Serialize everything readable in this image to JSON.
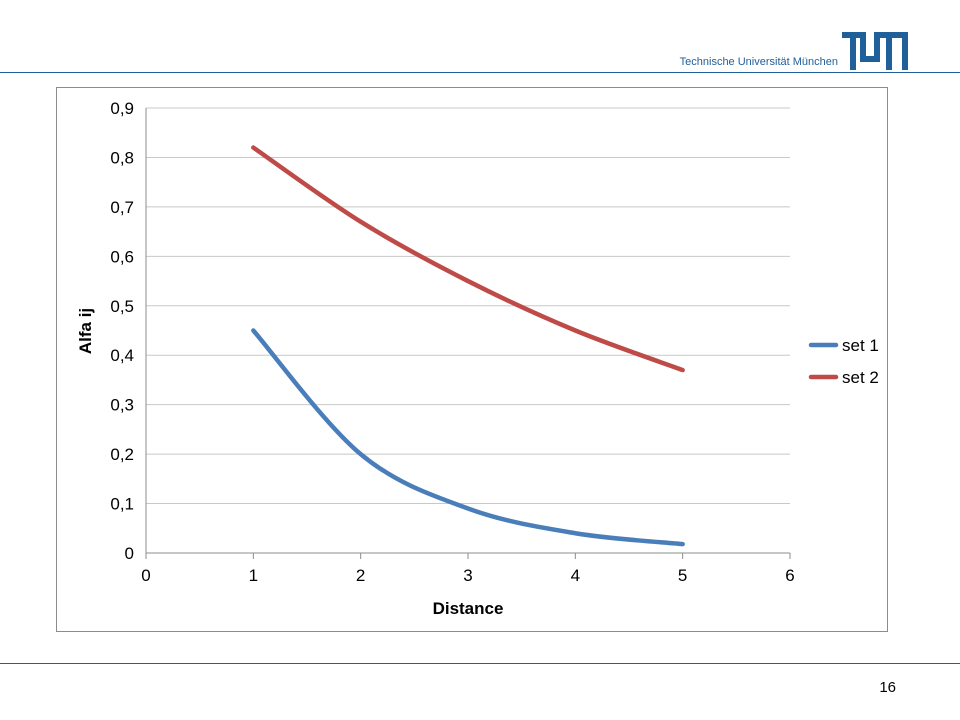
{
  "header": {
    "university": "Technische Universität München",
    "logo_text": "TUM"
  },
  "footer": {
    "page_number": "16"
  },
  "colors": {
    "accent": "#1f5f9a",
    "set1": "#4a7ebb",
    "set2": "#be4b48",
    "grid": "#c8c8c8"
  },
  "chart_data": {
    "type": "line",
    "title": "",
    "xlabel": "Distance",
    "ylabel": "Alfa ij",
    "xlim": [
      0,
      6
    ],
    "ylim": [
      0,
      0.9
    ],
    "xticks": [
      "0",
      "1",
      "2",
      "3",
      "4",
      "5",
      "6"
    ],
    "yticks": [
      "0",
      "0,1",
      "0,2",
      "0,3",
      "0,4",
      "0,5",
      "0,6",
      "0,7",
      "0,8",
      "0,9"
    ],
    "grid": true,
    "legend_position": "right",
    "x": [
      1,
      2,
      3,
      4,
      5
    ],
    "series": [
      {
        "name": "set 1",
        "values": [
          0.45,
          0.2,
          0.09,
          0.04,
          0.018
        ]
      },
      {
        "name": "set 2",
        "values": [
          0.82,
          0.67,
          0.55,
          0.45,
          0.37
        ]
      }
    ]
  }
}
